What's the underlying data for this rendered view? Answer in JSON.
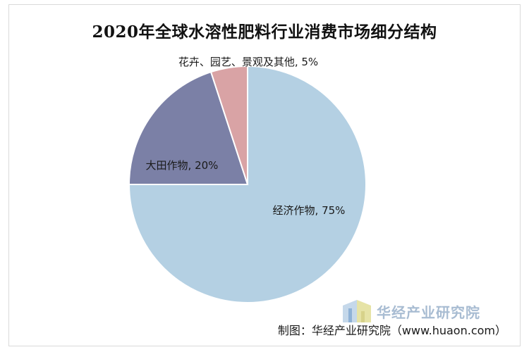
{
  "chart_data": {
    "type": "pie",
    "title": "2020年全球水溶性肥料行业消费市场细分结构",
    "slices": [
      {
        "label": "经济作物, 75%",
        "name": "经济作物",
        "value": 75,
        "color": "#b4d0e3"
      },
      {
        "label": "大田作物, 20%",
        "name": "大田作物",
        "value": 20,
        "color": "#7b80a6"
      },
      {
        "label": "花卉、园艺、景观及其他, 5%",
        "name": "花卉、园艺、景观及其他",
        "value": 5,
        "color": "#d9a3a5"
      }
    ],
    "start": "12 o'clock",
    "direction": "clockwise",
    "legend": "none"
  },
  "watermark": {
    "text": "华经产业研究院"
  },
  "source": "制图：华经产业研究院（www.huaon.com）"
}
